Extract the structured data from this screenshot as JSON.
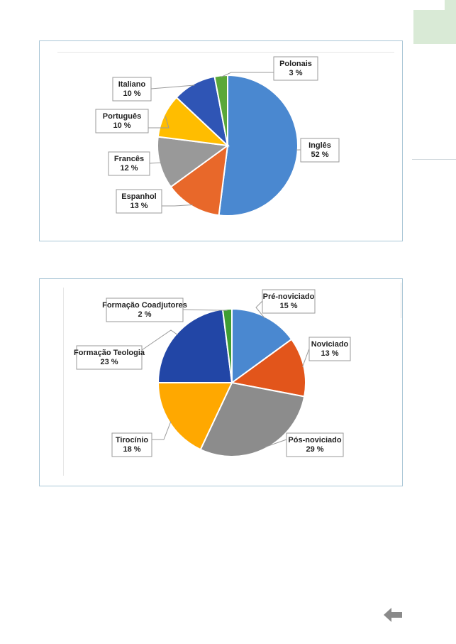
{
  "chart_data": [
    {
      "type": "pie",
      "title": "",
      "slices": [
        {
          "label": "Inglês",
          "value": 52,
          "display": "52 %",
          "color": "#4a88d0"
        },
        {
          "label": "Espanhol",
          "value": 13,
          "display": "13 %",
          "color": "#e8682a"
        },
        {
          "label": "Francês",
          "value": 12,
          "display": "12 %",
          "color": "#999999"
        },
        {
          "label": "Português",
          "value": 10,
          "display": "10 %",
          "color": "#ffbd00"
        },
        {
          "label": "Italiano",
          "value": 10,
          "display": "10 %",
          "color": "#2f55b5"
        },
        {
          "label": "Polonais",
          "value": 3,
          "display": "3 %",
          "color": "#5aa839"
        }
      ]
    },
    {
      "type": "pie",
      "title": "",
      "slices": [
        {
          "label": "Pré-noviciado",
          "value": 15,
          "display": "15 %",
          "color": "#4a88d0"
        },
        {
          "label": "Noviciado",
          "value": 13,
          "display": "13 %",
          "color": "#e2551b"
        },
        {
          "label": "Pós-noviciado",
          "value": 29,
          "display": "29 %",
          "color": "#8c8c8c"
        },
        {
          "label": "Tirocínio",
          "value": 18,
          "display": "18 %",
          "color": "#ffa800"
        },
        {
          "label": "Formação Teologia",
          "value": 23,
          "display": "23 %",
          "color": "#2246a6"
        },
        {
          "label": "Formação Coadjutores",
          "value": 2,
          "display": "2 %",
          "color": "#3f9e32"
        }
      ]
    }
  ],
  "nav": {
    "back_icon": "back-arrow-icon",
    "back_color": "#8a8a8a"
  },
  "theme": {
    "accent": "#d9ead6",
    "frame_border": "#a9c6d6"
  }
}
